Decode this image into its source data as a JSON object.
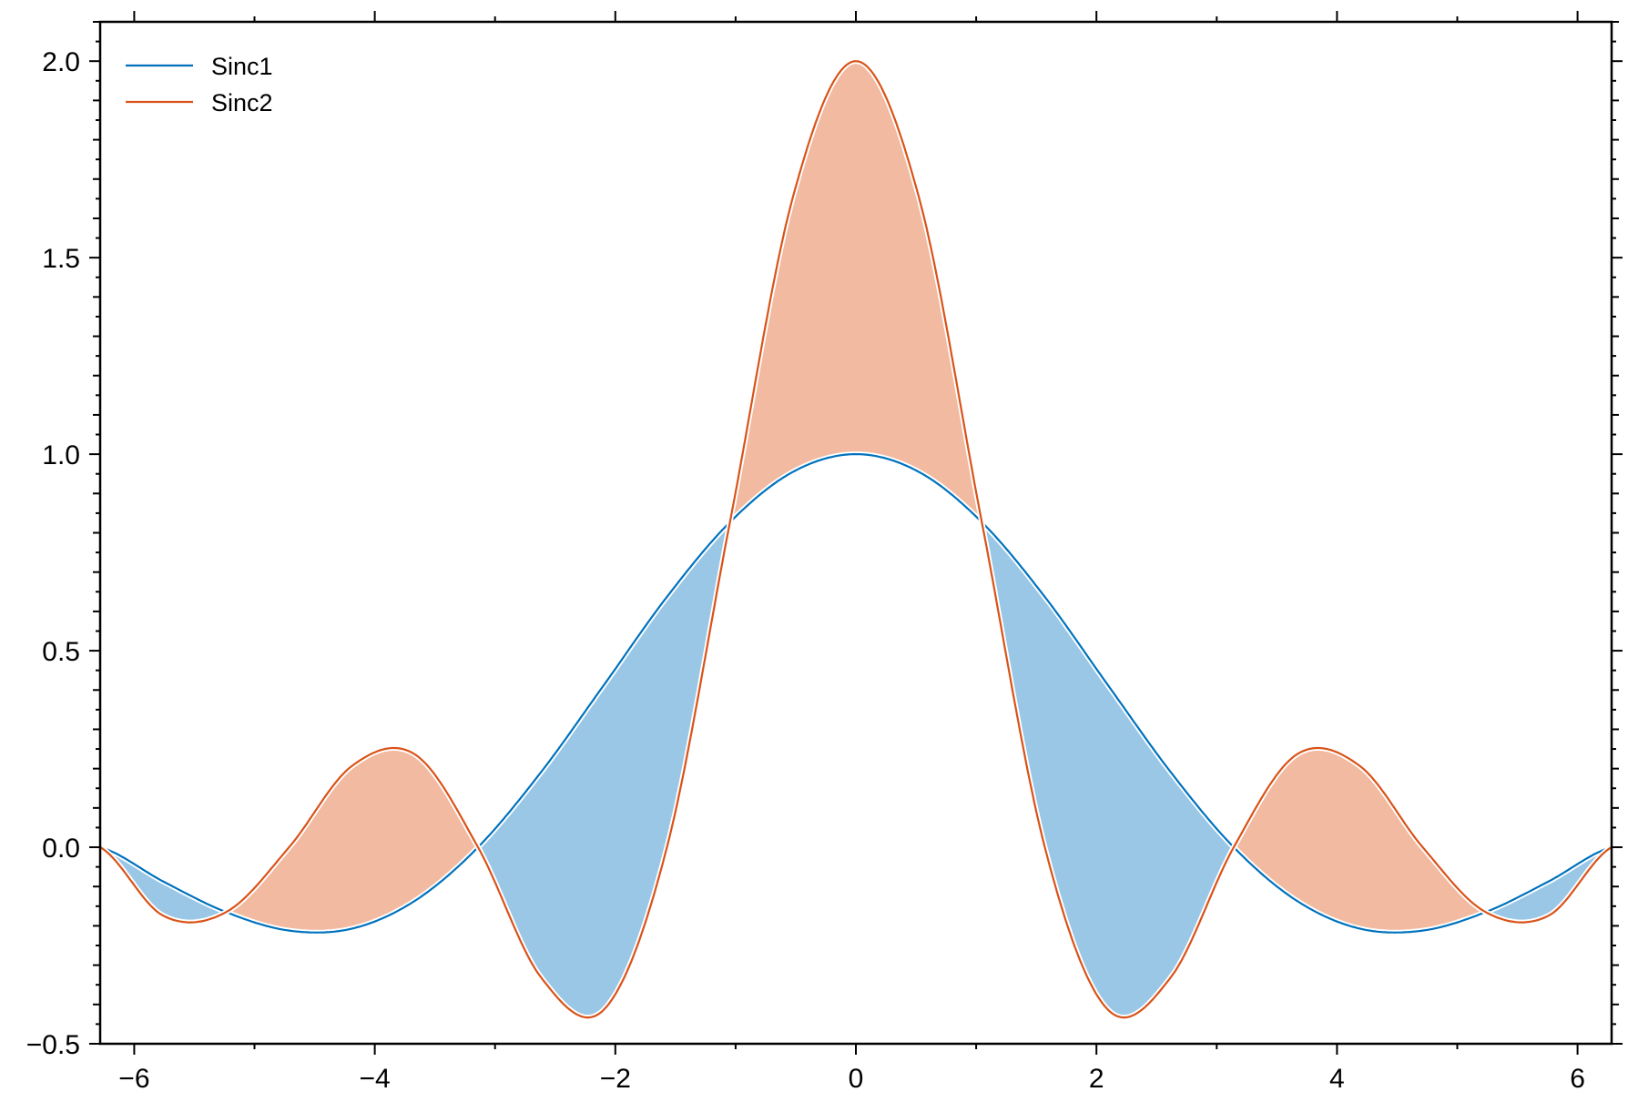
{
  "chart_data": {
    "type": "area",
    "title": "",
    "xlabel": "",
    "ylabel": "",
    "xlim": [
      -6.2832,
      6.2832
    ],
    "ylim": [
      -0.5,
      2.1
    ],
    "grid": false,
    "legend_position": "top-left",
    "fill_between": true,
    "x_ticks": [
      -6,
      -4,
      -2,
      0,
      2,
      4,
      6
    ],
    "x_tick_labels": [
      "−6",
      "−4",
      "−2",
      "0",
      "2",
      "4",
      "6"
    ],
    "y_ticks": [
      -0.5,
      0.0,
      0.5,
      1.0,
      1.5,
      2.0
    ],
    "y_tick_labels": [
      "−0.5",
      "0.0",
      "0.5",
      "1.0",
      "1.5",
      "2.0"
    ],
    "series": [
      {
        "name": "Sinc1",
        "color": "#0072bd",
        "x": [
          -6.2832,
          -5.7596,
          -5.236,
          -4.7124,
          -4.1888,
          -3.6652,
          -3.1416,
          -2.618,
          -2.0944,
          -1.5708,
          -1.0472,
          -0.5236,
          0.0,
          0.5236,
          1.0472,
          1.5708,
          2.0944,
          2.618,
          3.1416,
          3.6652,
          4.1888,
          4.7124,
          5.236,
          5.7596,
          6.2832
        ],
        "y": [
          0.0,
          -0.087,
          -0.165,
          -0.212,
          -0.207,
          -0.136,
          0.0,
          0.191,
          0.413,
          0.637,
          0.827,
          0.955,
          1.0,
          0.955,
          0.827,
          0.637,
          0.413,
          0.191,
          0.0,
          -0.136,
          -0.207,
          -0.212,
          -0.165,
          -0.087,
          0.0
        ]
      },
      {
        "name": "Sinc2",
        "color": "#d95319",
        "x": [
          -6.2832,
          -5.7596,
          -5.236,
          -4.7124,
          -4.1888,
          -3.6652,
          -3.1416,
          -2.618,
          -2.0944,
          -1.5708,
          -1.0472,
          -0.5236,
          0.0,
          0.5236,
          1.0472,
          1.5708,
          2.0944,
          2.618,
          3.1416,
          3.6652,
          4.1888,
          4.7124,
          5.236,
          5.7596,
          6.2832
        ],
        "y": [
          0.0,
          -0.174,
          -0.165,
          0.0,
          0.207,
          0.236,
          0.0,
          -0.331,
          -0.413,
          0.0,
          0.827,
          1.654,
          2.0,
          1.654,
          0.827,
          0.0,
          -0.413,
          -0.331,
          0.0,
          0.236,
          0.207,
          0.0,
          -0.165,
          -0.174,
          0.0
        ]
      }
    ],
    "fill_colors": {
      "sinc2_above": "#f1baa1",
      "sinc1_above": "#9ac7e6"
    }
  }
}
